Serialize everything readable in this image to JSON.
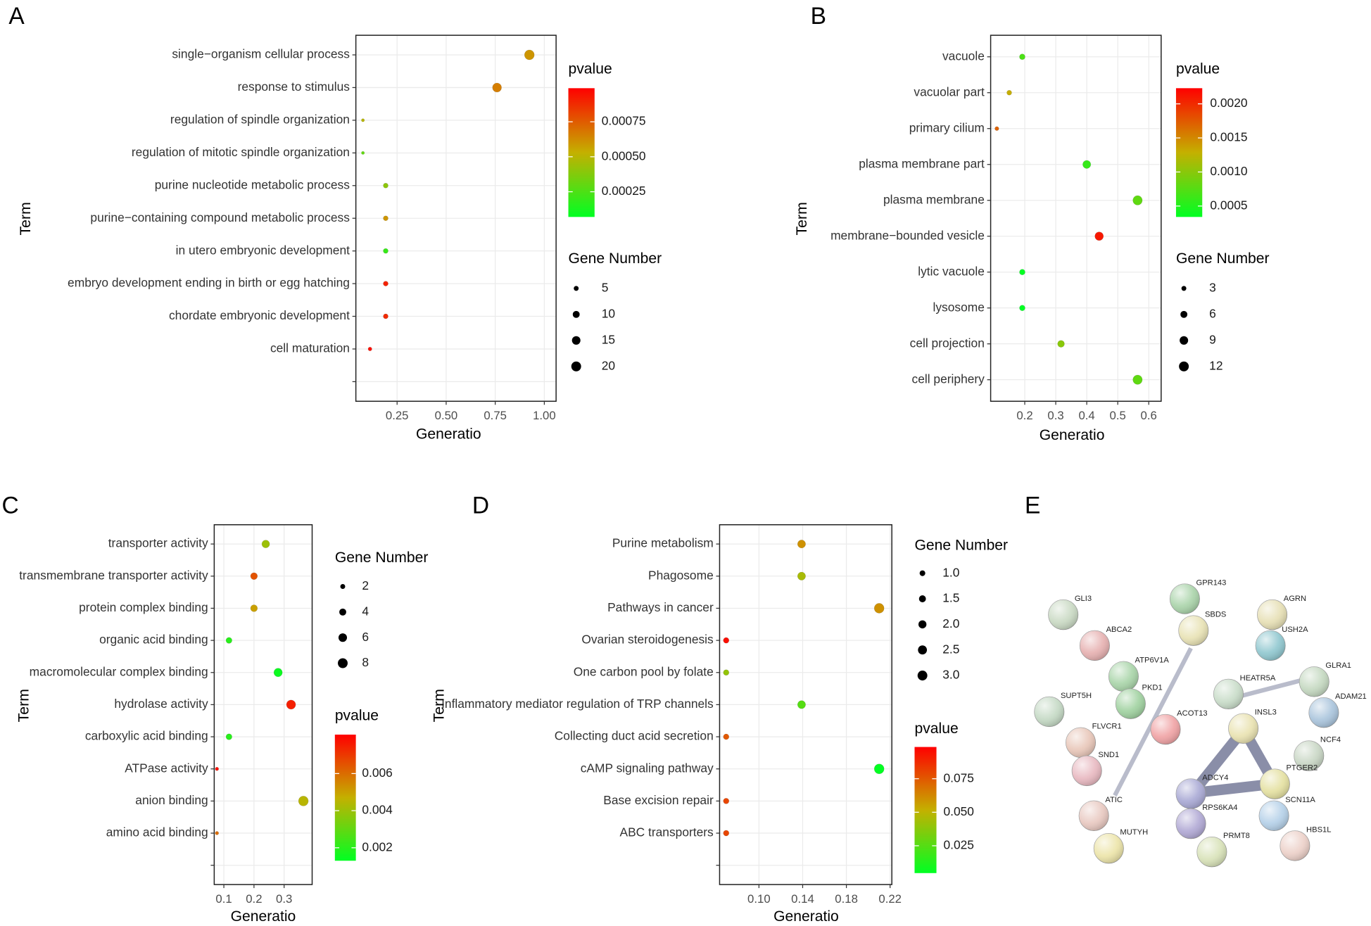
{
  "chart_data": [
    {
      "type": "scatter",
      "panel": "A",
      "x_label": "Generatio",
      "y_label": "Term",
      "categories": [
        "single−organism cellular process",
        "response to stimulus",
        "regulation of spindle organization",
        "regulation of mitotic spindle organization",
        "purine nucleotide metabolic process",
        "purine−containing compound metabolic process",
        "in utero embryonic development",
        "embryo development ending in birth or egg hatching",
        "chordate embryonic development",
        "cell maturation",
        null
      ],
      "x": [
        0.924,
        0.759,
        0.076,
        0.076,
        0.192,
        0.192,
        0.192,
        0.192,
        0.192,
        0.112,
        null
      ],
      "gene_number": [
        20,
        17,
        2,
        2,
        5,
        5,
        5,
        5,
        5,
        3,
        null
      ],
      "pvalue": [
        0.0006,
        0.00066,
        0.0005,
        0.0003,
        0.0004,
        0.0006,
        0.0002,
        0.0009,
        0.00088,
        0.00095,
        null
      ],
      "xlim": [
        0.04,
        1.06
      ],
      "xticks": [
        0.25,
        {
          "value": 0.5,
          "label": "0.50"
        },
        0.75,
        {
          "value": 1,
          "label": "1.00"
        }
      ],
      "grid": true,
      "colorbar": {
        "title": "pvalue",
        "colors": [
          "#00ff22",
          "#c4b000",
          "#ff0000"
        ],
        "lim": [
          7e-05,
          0.00099
        ],
        "ticks": [
          0.00075,
          {
            "value": 0.0005,
            "label": "0.00050"
          },
          0.00025
        ]
      },
      "size_legend": {
        "title": "Gene Number",
        "ticks": [
          5,
          10,
          15,
          20
        ]
      }
    },
    {
      "type": "scatter",
      "panel": "B",
      "x_label": "Generatio",
      "y_label": "Term",
      "categories": [
        "vacuole",
        "vacuolar part",
        "primary cilium",
        "plasma membrane part",
        "plasma membrane",
        "membrane−bounded vesicle",
        "lytic vacuole",
        "lysosome",
        "cell projection",
        "cell periphery"
      ],
      "x": [
        0.192,
        0.15,
        0.11,
        0.4,
        0.564,
        0.44,
        0.192,
        0.192,
        0.317,
        0.564
      ],
      "gene_number": [
        4,
        3,
        2,
        8,
        11,
        9,
        4,
        4,
        6,
        11
      ],
      "pvalue": [
        0.0007,
        0.0013,
        0.0017,
        0.0006,
        0.0008,
        0.0021,
        0.0003,
        0.0003,
        0.001,
        0.0008
      ],
      "xlim": [
        0.09,
        0.64
      ],
      "xticks": [
        0.2,
        0.3,
        0.4,
        0.5,
        0.6
      ],
      "grid": true,
      "colorbar": {
        "title": "pvalue",
        "colors": [
          "#00ff22",
          "#c4b000",
          "#ff0000"
        ],
        "lim": [
          0.00034,
          0.00223
        ],
        "ticks": [
          {
            "value": 0.002,
            "label": "0.0020"
          },
          0.0015,
          {
            "value": 0.001,
            "label": "0.0010"
          },
          0.0005
        ]
      },
      "size_legend": {
        "title": "Gene Number",
        "ticks": [
          3,
          6,
          9,
          12
        ]
      }
    },
    {
      "type": "scatter",
      "panel": "C",
      "x_label": "Generatio",
      "y_label": "Term",
      "categories": [
        "transporter activity",
        "transmembrane transporter activity",
        "protein complex binding",
        "organic acid binding",
        "macromolecular complex binding",
        "hydrolase activity",
        "carboxylic acid binding",
        "ATPase activity",
        "anion binding",
        "amino acid binding",
        null
      ],
      "x": [
        0.239,
        0.2,
        0.2,
        0.117,
        0.28,
        0.323,
        0.117,
        0.077,
        0.364,
        0.077,
        null
      ],
      "gene_number": [
        5,
        4,
        4,
        3,
        6,
        7,
        3,
        1,
        8,
        1,
        null
      ],
      "pvalue": [
        0.004,
        0.0065,
        0.005,
        0.002,
        0.0015,
        0.0075,
        0.002,
        0.0078,
        0.0045,
        0.006,
        null
      ],
      "xlim": [
        0.068,
        0.393
      ],
      "xticks": [
        0.1,
        0.2,
        0.3
      ],
      "grid": true,
      "colorbar": {
        "title": "pvalue",
        "colors": [
          "#00ff22",
          "#c4b000",
          "#ff0000"
        ],
        "lim": [
          0.0013,
          0.0081
        ],
        "ticks": [
          0.006,
          0.004,
          0.002
        ]
      },
      "size_legend": {
        "title": "Gene Number",
        "ticks": [
          2,
          4,
          6,
          8
        ]
      }
    },
    {
      "type": "scatter",
      "panel": "D",
      "x_label": "Generatio",
      "y_label": "Term",
      "categories": [
        "Purine metabolism",
        "Phagosome",
        "Pathways in cancer",
        "Ovarian steroidogenesis",
        "One carbon pool by folate",
        "Inflammatory mediator regulation of TRP channels",
        "Collecting duct acid secretion",
        "cAMP signaling pathway",
        "Base excision repair",
        "ABC transporters",
        null
      ],
      "x": [
        0.139,
        0.139,
        0.21,
        0.07,
        0.07,
        0.139,
        0.07,
        0.21,
        0.07,
        0.07,
        null
      ],
      "gene_number": [
        2,
        2,
        3,
        1,
        1,
        2,
        1,
        3,
        1,
        1,
        null
      ],
      "pvalue": [
        0.06,
        0.045,
        0.06,
        0.095,
        0.04,
        0.025,
        0.075,
        0.005,
        0.08,
        0.08,
        null
      ],
      "xlim": [
        0.064,
        0.2216
      ],
      "xticks": [
        {
          "value": 0.1,
          "label": "0.10"
        },
        0.14,
        0.18,
        0.22
      ],
      "grid": true,
      "colorbar": {
        "title": "pvalue",
        "colors": [
          "#00ff22",
          "#c4b000",
          "#ff0000"
        ],
        "lim": [
          0.0046,
          0.0987
        ],
        "ticks": [
          0.075,
          {
            "value": 0.05,
            "label": "0.050"
          },
          0.025
        ]
      },
      "size_legend": {
        "title": "Gene Number",
        "ticks": [
          {
            "value": 1,
            "label": "1.0"
          },
          1.5,
          {
            "value": 2,
            "label": "2.0"
          },
          2.5,
          {
            "value": 3,
            "label": "3.0"
          }
        ]
      }
    }
  ],
  "network": {
    "panel": "E",
    "nodes": [
      "GLI3",
      "ABCA2",
      "GPR143",
      "SBDS",
      "AGRN",
      "USH2A",
      "ATP6V1A",
      "PKD1",
      "SUPT5H",
      "HEATR5A",
      "GLRA1",
      "ADAM21",
      "INSL3",
      "ACOT13",
      "FLVCR1",
      "NCF4",
      "SND1",
      "PTGER2",
      "ADCY4",
      "SCN11A",
      "ATIC",
      "RPS6KA4",
      "HBS1L",
      "MUTYH",
      "PRMT8"
    ]
  }
}
